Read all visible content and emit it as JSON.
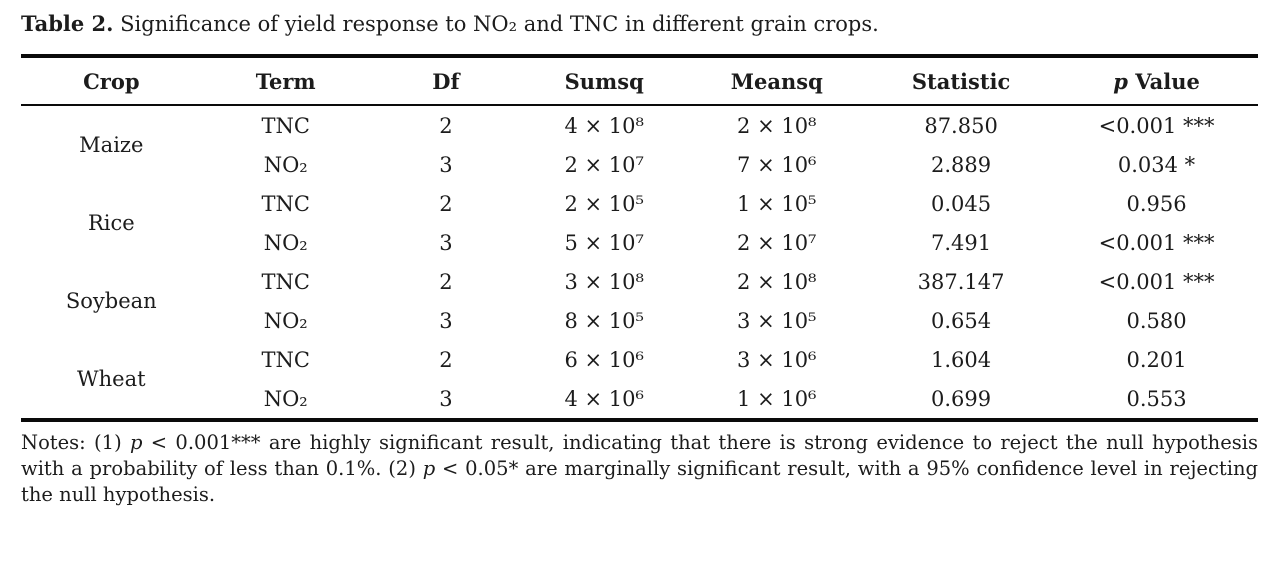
{
  "caption": {
    "label": "Table 2.",
    "text": " Significance of yield response to NO₂ and TNC in different grain crops."
  },
  "table": {
    "columns": {
      "crop": "Crop",
      "term": "Term",
      "df": "Df",
      "sumsq": "Sumsq",
      "meansq": "Meansq",
      "statistic": "Statistic",
      "p_italic": "p",
      "p_rest": " Value"
    },
    "groups": [
      {
        "crop": "Maize",
        "rows": [
          {
            "term": "TNC",
            "df": "2",
            "sumsq": "4 × 10⁸",
            "meansq": "2 × 10⁸",
            "statistic": "87.850",
            "p_value": "<0.001 ***"
          },
          {
            "term": "NO₂",
            "df": "3",
            "sumsq": "2 × 10⁷",
            "meansq": "7 × 10⁶",
            "statistic": "2.889",
            "p_value": "0.034 *"
          }
        ]
      },
      {
        "crop": "Rice",
        "rows": [
          {
            "term": "TNC",
            "df": "2",
            "sumsq": "2 × 10⁵",
            "meansq": "1 × 10⁵",
            "statistic": "0.045",
            "p_value": "0.956"
          },
          {
            "term": "NO₂",
            "df": "3",
            "sumsq": "5 × 10⁷",
            "meansq": "2 × 10⁷",
            "statistic": "7.491",
            "p_value": "<0.001 ***"
          }
        ]
      },
      {
        "crop": "Soybean",
        "rows": [
          {
            "term": "TNC",
            "df": "2",
            "sumsq": "3 × 10⁸",
            "meansq": "2 × 10⁸",
            "statistic": "387.147",
            "p_value": "<0.001 ***"
          },
          {
            "term": "NO₂",
            "df": "3",
            "sumsq": "8 × 10⁵",
            "meansq": "3 × 10⁵",
            "statistic": "0.654",
            "p_value": "0.580"
          }
        ]
      },
      {
        "crop": "Wheat",
        "rows": [
          {
            "term": "TNC",
            "df": "2",
            "sumsq": "6 × 10⁶",
            "meansq": "3 × 10⁶",
            "statistic": "1.604",
            "p_value": "0.201"
          },
          {
            "term": "NO₂",
            "df": "3",
            "sumsq": "4 × 10⁶",
            "meansq": "1 × 10⁶",
            "statistic": "0.699",
            "p_value": "0.553"
          }
        ]
      }
    ]
  },
  "notes": {
    "prefix": "Notes: (1) ",
    "p1": "p",
    "seg1": " < 0.001*** are highly significant result, indicating that there is strong evidence to reject the null hypothesis with a probability of less than 0.1%. (2) ",
    "p2": "p",
    "seg2": " < 0.05* are marginally significant result, with a 95% confidence level in rejecting the null hypothesis."
  }
}
